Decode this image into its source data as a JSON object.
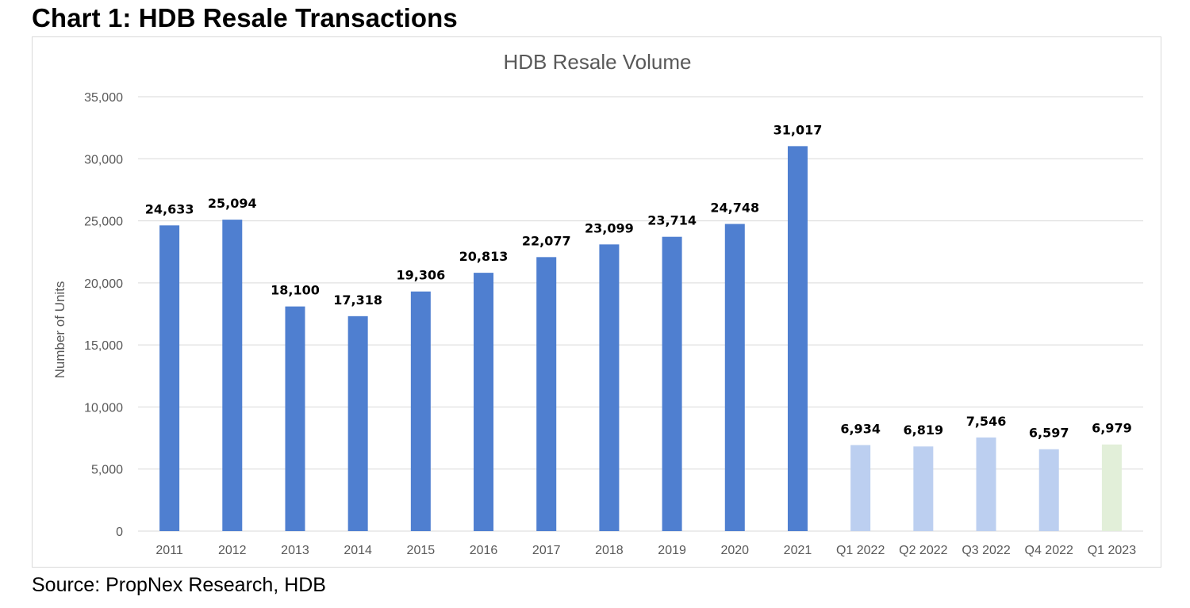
{
  "heading": "Chart 1: HDB Resale Transactions",
  "source": "Source: PropNex Research, HDB",
  "chart_data": {
    "type": "bar",
    "title": "HDB Resale Volume",
    "xlabel": "",
    "ylabel": "Number of Units",
    "ylim": [
      0,
      35000
    ],
    "ytick_step": 5000,
    "yticks": [
      "0",
      "5,000",
      "10,000",
      "15,000",
      "20,000",
      "25,000",
      "30,000",
      "35,000"
    ],
    "grid": true,
    "legend": "none",
    "categories": [
      "2011",
      "2012",
      "2013",
      "2014",
      "2015",
      "2016",
      "2017",
      "2018",
      "2019",
      "2020",
      "2021",
      "Q1 2022",
      "Q2 2022",
      "Q3 2022",
      "Q4 2022",
      "Q1 2023"
    ],
    "values": [
      24633,
      25094,
      18100,
      17318,
      19306,
      20813,
      22077,
      23099,
      23714,
      24748,
      31017,
      6934,
      6819,
      7546,
      6597,
      6979
    ],
    "value_labels": [
      "24,633",
      "25,094",
      "18,100",
      "17,318",
      "19,306",
      "20,813",
      "22,077",
      "23,099",
      "23,714",
      "24,748",
      "31,017",
      "6,934",
      "6,819",
      "7,546",
      "6,597",
      "6,979"
    ],
    "bar_colors": [
      "#4f7fd0",
      "#4f7fd0",
      "#4f7fd0",
      "#4f7fd0",
      "#4f7fd0",
      "#4f7fd0",
      "#4f7fd0",
      "#4f7fd0",
      "#4f7fd0",
      "#4f7fd0",
      "#4f7fd0",
      "#bccff0",
      "#bccff0",
      "#bccff0",
      "#bccff0",
      "#e2efd9"
    ],
    "gridline_color": "#d9d9d9",
    "text_color": "#595959"
  }
}
